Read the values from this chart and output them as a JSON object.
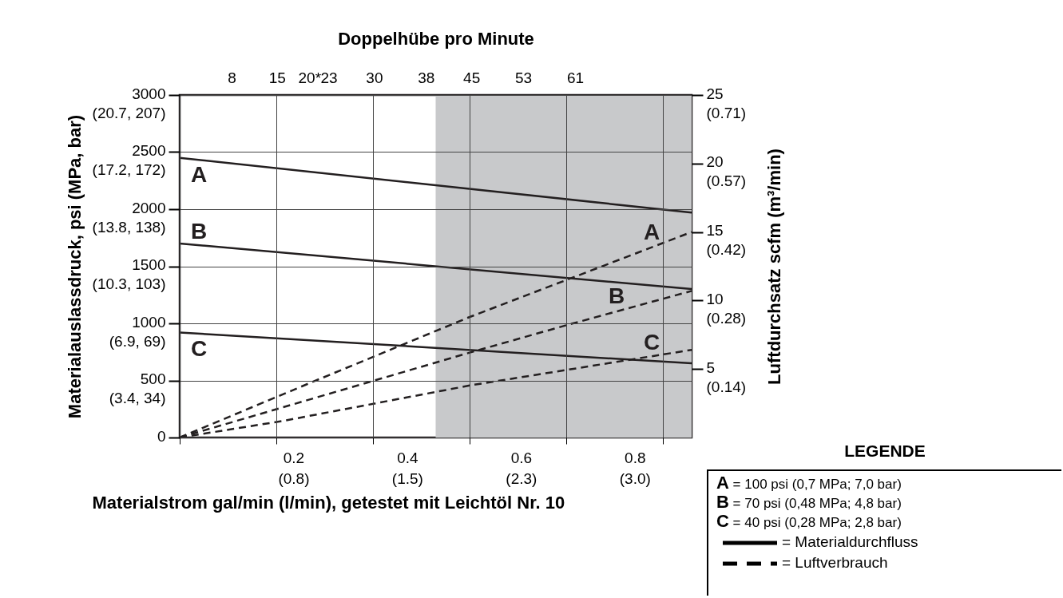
{
  "chart_data": {
    "type": "line",
    "x2label": "Doppelhübe pro Minute",
    "xlabel": "Materialstrom gal/min (l/min), getestet mit Leichtöl Nr. 10",
    "ylabel": "Materialauslassdruck, psi (MPa, bar)",
    "y2label": "Luftdurchsatz scfm (m³/min)",
    "legend_title": "LEGENDE",
    "annotations": [
      "A = 100 psi (0,7 MPa; 7,0 bar)",
      "B = 70 psi (0,48 MPa; 4,8 bar)",
      "C = 40 psi (0,28 MPa; 2,8 bar)",
      "= Materialdurchfluss",
      "= Luftverbrauch",
      "(0.8)",
      "(1.5)",
      "(2.3)",
      "(3.0)",
      "(3.4, 34)",
      "(6.9, 69)",
      "(10.3, 103)",
      "(13.8, 138)",
      "(17.2, 172)",
      "(20.7, 207)",
      "(0.14)",
      "(0.28)",
      "(0.42)",
      "(0.57)",
      "(0.71)"
    ],
    "xlim": [
      0,
      0.9
    ],
    "xticks": [
      0.2,
      0.4,
      0.6,
      0.8,
      {
        "value": 0,
        "label": null
      },
      {
        "value": 0.17,
        "label": null
      },
      {
        "value": 0.34,
        "label": null
      },
      {
        "value": 0.51,
        "label": null
      },
      {
        "value": 0.68,
        "label": null
      },
      {
        "value": 0.85,
        "label": null
      }
    ],
    "x2lim": [
      0,
      79
    ],
    "x2ticks": [
      8,
      15,
      {
        "value": 20,
        "label": "20*"
      },
      23,
      30,
      38,
      45,
      53,
      61
    ],
    "ylim": [
      0,
      3000
    ],
    "yticks": [
      0,
      500,
      1000,
      1500,
      2000,
      2500,
      3000
    ],
    "y2lim": [
      0,
      25
    ],
    "y2ticks": [
      5,
      10,
      15,
      20,
      25
    ],
    "grid": true,
    "bands": [
      {
        "axis": "x",
        "from": 0.45,
        "to": 0.9,
        "color": "#c8c9cb"
      }
    ],
    "series": [
      {
        "name": "A",
        "color": "#231f20",
        "axis": "y",
        "line_style": "solid",
        "x": [
          0,
          0.9
        ],
        "values": [
          2450,
          1970
        ]
      },
      {
        "name": "B",
        "color": "#231f20",
        "axis": "y",
        "line_style": "solid",
        "x": [
          0,
          0.9
        ],
        "values": [
          1700,
          1300
        ]
      },
      {
        "name": "C",
        "color": "#231f20",
        "axis": "y",
        "line_style": "solid",
        "x": [
          0,
          0.9
        ],
        "values": [
          920,
          650
        ]
      },
      {
        "name": "A",
        "color": "#231f20",
        "axis": "y2",
        "line_style": "dashed",
        "x": [
          0,
          0.23,
          0.51,
          0.9
        ],
        "values": [
          0,
          4,
          8.8,
          15
        ]
      },
      {
        "name": "B",
        "color": "#231f20",
        "axis": "y2",
        "line_style": "dashed",
        "x": [
          0,
          0.51,
          0.68,
          0.9
        ],
        "values": [
          0,
          6.2,
          8.2,
          10.7
        ]
      },
      {
        "name": "C",
        "color": "#231f20",
        "axis": "y2",
        "line_style": "dashed",
        "x": [
          0,
          0.18,
          0.51,
          0.9
        ],
        "values": [
          0,
          1.2,
          3.8,
          6.4
        ]
      }
    ]
  }
}
